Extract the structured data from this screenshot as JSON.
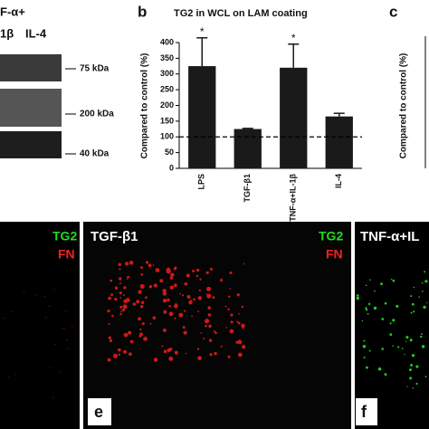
{
  "blot": {
    "header": [
      "F-α+",
      "1β",
      "IL-4"
    ],
    "markers": [
      "75 kDa",
      "200 kDa",
      "40 kDa"
    ]
  },
  "panel_b": {
    "letter": "b"
  },
  "chart_data": {
    "type": "bar",
    "title": "TG2 in WCL on LAM coating",
    "y_label": "Compared to control (%)",
    "categories": [
      "LPS",
      "TGF-β1",
      "TNF-α+IL-1β",
      "IL-4"
    ],
    "values": [
      325,
      125,
      320,
      165
    ],
    "errors": [
      90,
      2,
      75,
      10
    ],
    "color": "#1a1a1a",
    "annotations": [
      "*",
      null,
      "*",
      null
    ],
    "reference_line": 100,
    "ylim": [
      0,
      400
    ],
    "yticks": [
      0,
      50,
      100,
      150,
      200,
      250,
      300,
      350,
      400
    ]
  },
  "panel_c": {
    "letter": "c",
    "y_label": "Compared to control (%)"
  },
  "images": [
    {
      "labels": [
        "TG2",
        "FN"
      ]
    },
    {
      "title": "TGF-β1",
      "labels": [
        "TG2",
        "FN"
      ],
      "letter": "e"
    },
    {
      "title": "TNF-α+IL",
      "letter": "f"
    }
  ]
}
